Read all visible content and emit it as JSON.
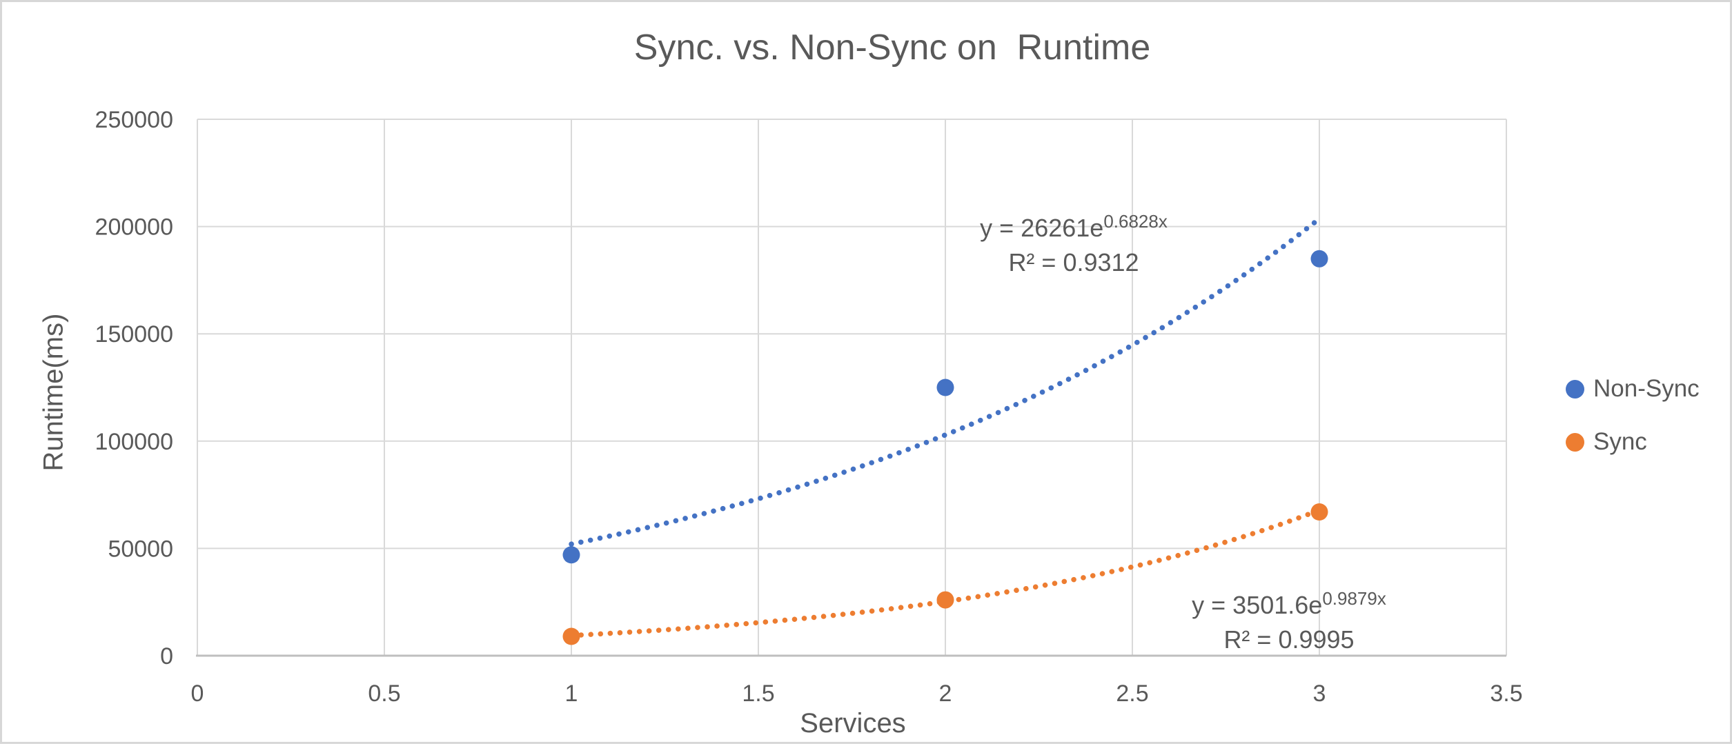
{
  "chart_data": {
    "type": "scatter",
    "title": "Sync. vs. Non-Sync on  Runtime",
    "xlabel": "Services",
    "ylabel": "Runtime(ms)",
    "xlim": [
      0,
      3.5
    ],
    "ylim": [
      0,
      250000
    ],
    "x_ticks": [
      "0",
      "0.5",
      "1",
      "1.5",
      "2",
      "2.5",
      "3",
      "3.5"
    ],
    "y_ticks": [
      "0",
      "50000",
      "100000",
      "150000",
      "200000",
      "250000"
    ],
    "grid": true,
    "legend_position": "right",
    "colors": {
      "gridline": "#d9d9d9",
      "axis_line": "#bfbfbf",
      "text": "#595959"
    },
    "series": [
      {
        "name": "Non-Sync",
        "color": "#4472C4",
        "x": [
          1,
          2,
          3
        ],
        "y": [
          47000,
          125000,
          185000
        ],
        "trendline": {
          "type": "exponential",
          "a": 26261,
          "b": 0.6828,
          "x_range": [
            1,
            3
          ],
          "equation_base": "y = 26261e",
          "equation_exponent": "0.6828x",
          "r2_label": "R² = 0.9312"
        }
      },
      {
        "name": "Sync",
        "color": "#ED7D31",
        "x": [
          1,
          2,
          3
        ],
        "y": [
          9000,
          26000,
          67000
        ],
        "trendline": {
          "type": "exponential",
          "a": 3501.6,
          "b": 0.9879,
          "x_range": [
            1,
            3
          ],
          "equation_base": "y = 3501.6e",
          "equation_exponent": "0.9879x",
          "r2_label": "R² = 0.9995"
        }
      }
    ]
  }
}
